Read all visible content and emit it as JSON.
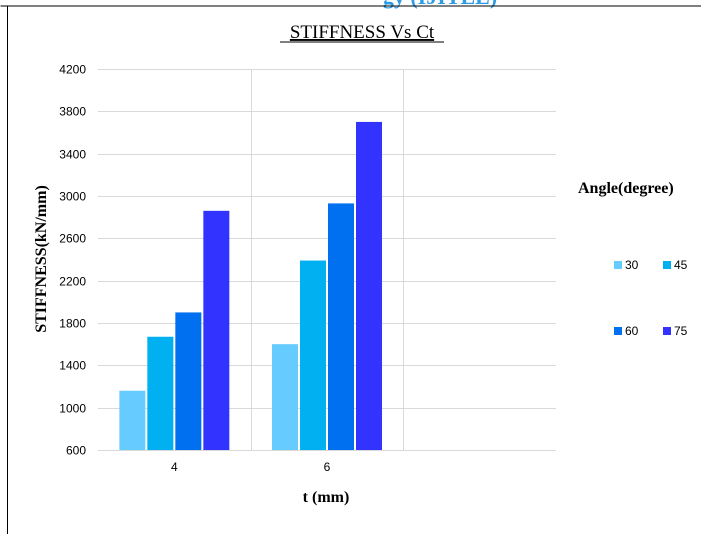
{
  "header_fragment": "gy (IJITEE)",
  "chart_data": {
    "type": "bar",
    "title": "STIFFNESS Vs Ct",
    "xlabel": "t (mm)",
    "ylabel": "STIFFNESS(kN/mm)",
    "categories": [
      "4",
      "6",
      ""
    ],
    "ylim": [
      600,
      4200
    ],
    "yticks": [
      600,
      1000,
      1400,
      1800,
      2200,
      2600,
      3000,
      3400,
      3800,
      4200
    ],
    "grid": true,
    "legend_title": "Angle(degree)",
    "legend_position": "right",
    "series": [
      {
        "name": "30",
        "color": "#66CCFF",
        "values": [
          1160,
          1600,
          null
        ]
      },
      {
        "name": "45",
        "color": "#00B0F0",
        "values": [
          1670,
          2390,
          null
        ]
      },
      {
        "name": "60",
        "color": "#0070F0",
        "values": [
          1900,
          2930,
          null
        ]
      },
      {
        "name": "75",
        "color": "#3333FF",
        "values": [
          2860,
          3700,
          null
        ]
      }
    ]
  }
}
